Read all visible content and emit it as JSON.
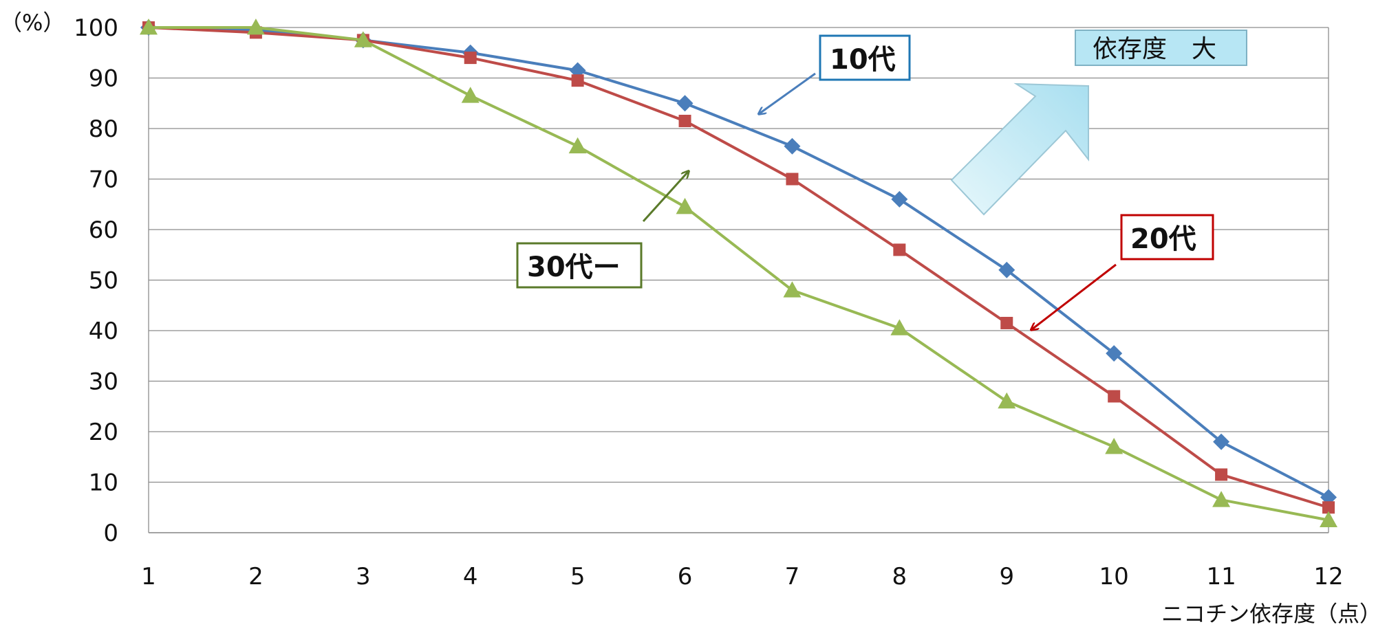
{
  "chart_data": {
    "type": "line",
    "x": [
      1,
      2,
      3,
      4,
      5,
      6,
      7,
      8,
      9,
      10,
      11,
      12
    ],
    "xlabel": "ニコチン依存度（点）",
    "ylabel": "（%）",
    "ylim": [
      0,
      100
    ],
    "yticks": [
      0,
      10,
      20,
      30,
      40,
      50,
      60,
      70,
      80,
      90,
      100
    ],
    "grid": true,
    "series": [
      {
        "name": "10代",
        "color": "#4a7ebb",
        "marker": "diamond",
        "values": [
          100,
          99.5,
          97.5,
          95,
          91.5,
          85,
          76.5,
          66,
          52,
          35.5,
          18,
          7
        ]
      },
      {
        "name": "20代",
        "color": "#be4b48",
        "marker": "square",
        "values": [
          100,
          99,
          97.5,
          94,
          89.5,
          81.5,
          70,
          56,
          41.5,
          27,
          11.5,
          5
        ]
      },
      {
        "name": "30代ー",
        "color": "#98b954",
        "marker": "triangle",
        "values": [
          100,
          100,
          97.5,
          86.5,
          76.5,
          64.5,
          48,
          40.5,
          26,
          17,
          6.5,
          2.5
        ]
      }
    ],
    "annotations": {
      "dependence_note": "依存度　大"
    }
  }
}
